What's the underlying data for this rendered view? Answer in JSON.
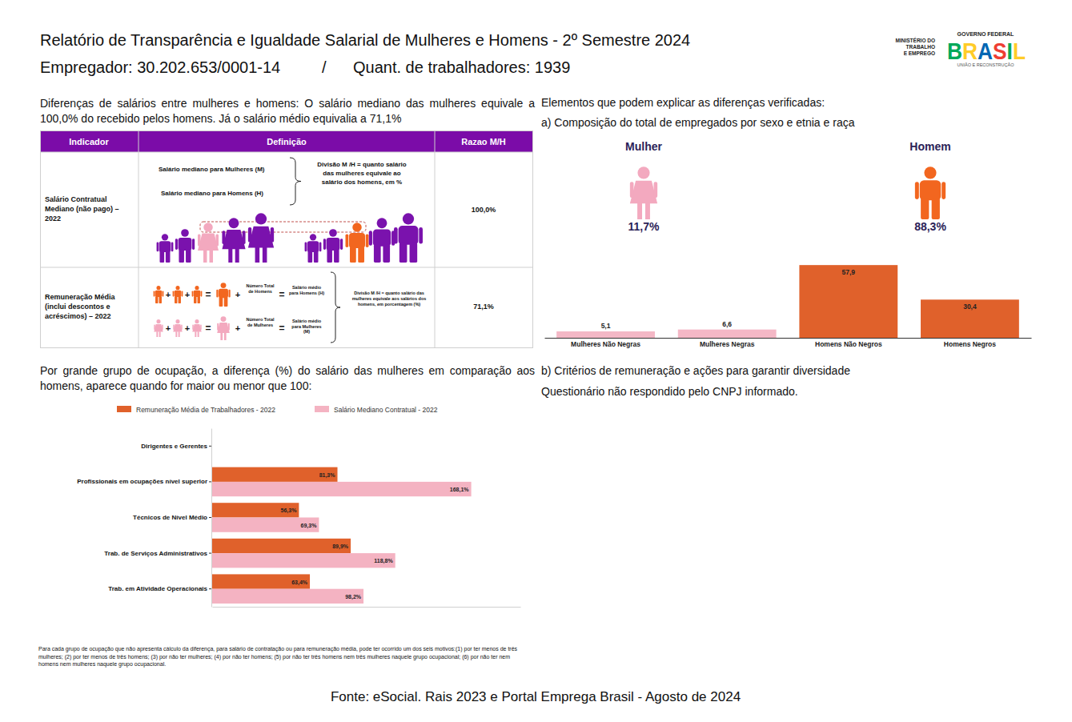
{
  "header": {
    "title": "Relatório de Transparência e Igualdade Salarial de Mulheres e Homens - 2º Semestre 2024",
    "employer": "Empregador: 30.202.653/0001-14",
    "separator": "/",
    "workers": "Quant. de trabalhadores: 1939"
  },
  "logo": {
    "ministry": [
      "MINISTÉRIO DO",
      "TRABALHO",
      "E EMPREGO"
    ],
    "gov": "GOVERNO FEDERAL",
    "brasil": "BRASIL",
    "tagline": "UNIÃO E RECONSTRUÇÃO"
  },
  "intro": "Diferenças de salários entre mulheres e homens: O salário mediano das mulheres equivale a 100,0% do recebido pelos homens. Já o salário médio equivalia a 71,1%",
  "table": {
    "headers": [
      "Indicador",
      "Definição",
      "Razao M/H"
    ],
    "plus": "+",
    "equals": "=",
    "rows": [
      {
        "indicator": "Salário Contratual Mediano (não pago) – 2022",
        "def_women": "Salário mediano para Mulheres (M)",
        "def_men": "Salário mediano para Homens (H)",
        "division": "Divisão M /H = quanto salário das mulheres equivale ao salário dos homens, em %",
        "ratio": "100,0%"
      },
      {
        "indicator": "Remuneração Média (inclui descontos e acréscimos) – 2022",
        "men_count": "Número Total de Homens",
        "men_avg": "Salário médio para Homens (H)",
        "women_count": "Número Total de Mulheres",
        "women_avg": "Salário médio para Mulheres (M)",
        "division": "Divisão M /H = quanto salário das mulheres equivale aos salários dos homens, em porcentagem (%)",
        "ratio": "71,1%"
      }
    ]
  },
  "composition": {
    "title": "Elementos que podem explicar as diferenças verificadas:",
    "subtitle": "a) Composição do total de empregados por sexo e etnia e raça",
    "women_label": "Mulher",
    "women_pct": "11,7%",
    "men_label": "Homem",
    "men_pct": "88,3%"
  },
  "chart_data": [
    {
      "type": "bar",
      "categories": [
        "Mulheres Não Negras",
        "Mulheres Negras",
        "Homens Não Negros",
        "Homens Negros"
      ],
      "values": [
        5.1,
        6.6,
        57.9,
        30.4
      ],
      "value_labels": [
        "5,1",
        "6,6",
        "57,9",
        "30,4"
      ],
      "colors": [
        "#f4b8c6",
        "#f4b8c6",
        "#e0612b",
        "#e0612b"
      ],
      "ylim": [
        0,
        58
      ],
      "data_labels": true,
      "tick_labels": false
    },
    {
      "type": "bar",
      "orientation": "horizontal",
      "categories": [
        "Dirigentes e Gerentes",
        "Profissionais em ocupações nível superior",
        "Técnicos de Nível Médio",
        "Trab. de Serviços Administrativos",
        "Trab. em Atividade Operacionais"
      ],
      "series": [
        {
          "name": "Remuneração Média de Trabalhadores - 2022",
          "color": "#e0612b",
          "values": [
            null,
            81.3,
            56.3,
            89.9,
            63.4
          ],
          "value_labels": [
            null,
            "81,3%",
            "56,3%",
            "89,9%",
            "63,4%"
          ]
        },
        {
          "name": "Salário Mediano Contratual - 2022",
          "color": "#f4b3c2",
          "values": [
            null,
            168.1,
            69.3,
            118.8,
            98.2
          ],
          "value_labels": [
            null,
            "168,1%",
            "69,3%",
            "118,8%",
            "98,2%"
          ]
        }
      ],
      "xlim": [
        0,
        200
      ],
      "data_labels": true,
      "tick_labels": "y",
      "legend": "top"
    }
  ],
  "occupation_intro": "Por grande grupo de ocupação, a diferença (%) do salário das mulheres em comparação aos homens, aparece quando for maior ou menor que 100:",
  "section_b": {
    "title": "b) Critérios de remuneração e ações para garantir diversidade",
    "text": "Questionário não respondido pelo CNPJ informado."
  },
  "note": "Para cada grupo de ocupação que não apresenta cálculo da diferença, para salário de contratação ou para remuneração média, pode ter ocorrido um dos seis motivos:(1) por ter menos de três mulheres; (2) por ter menos de três homens; (3) por não ter mulheres; (4) por não ter homens; (5) por não ter três homens nem três mulheres naquele grupo ocupacional; (6) por não ter nem homens nem mulheres naquele grupo ocupacional.",
  "source": "Fonte: eSocial. Rais 2023 e Portal Emprega Brasil - Agosto de 2024"
}
